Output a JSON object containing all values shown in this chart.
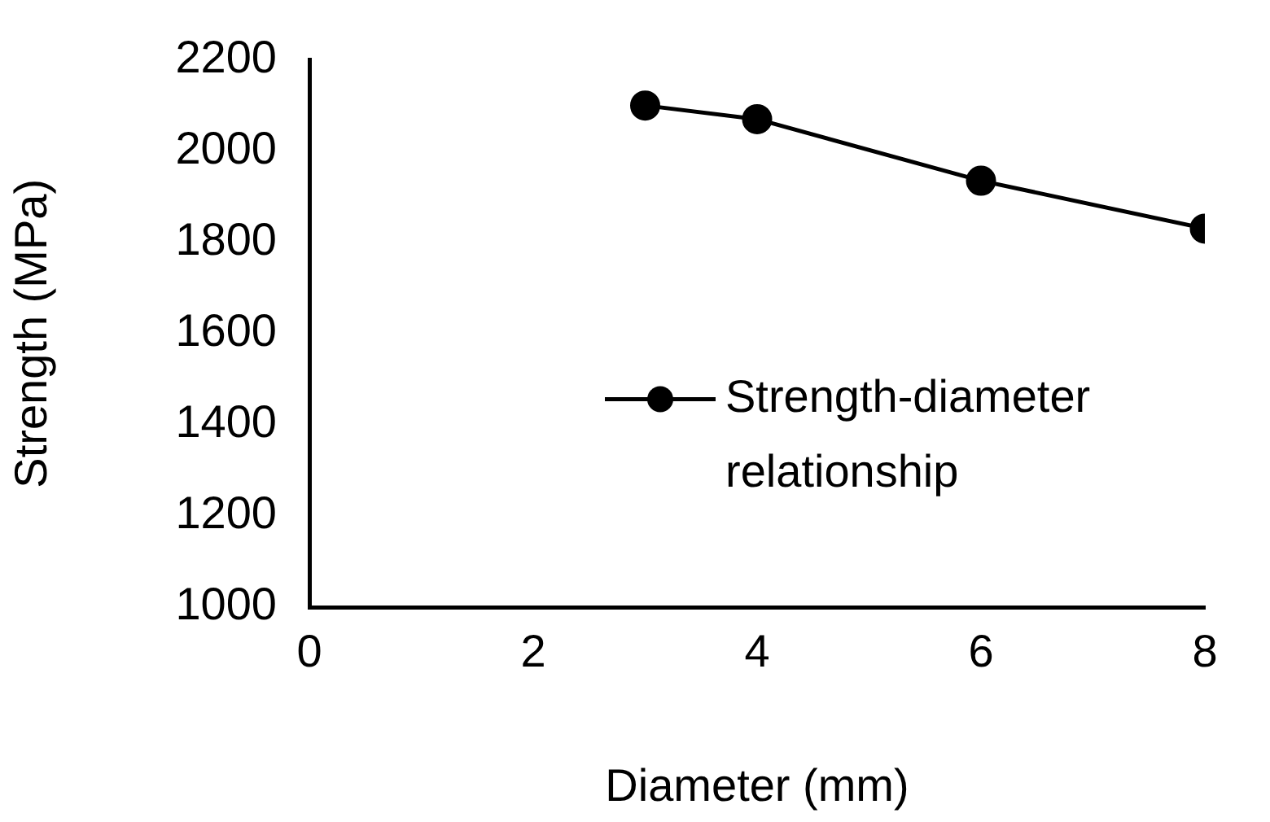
{
  "chart_data": {
    "type": "line",
    "xlabel": "Diameter (mm)",
    "ylabel": "Strength (MPa)",
    "x": [
      3,
      4,
      6,
      8
    ],
    "series": [
      {
        "name": "Strength-diameter relationship",
        "color": "#000000",
        "values": [
          2100,
          2070,
          1935,
          1830
        ]
      }
    ],
    "xlim": [
      0,
      8
    ],
    "xticks": [
      0,
      2,
      4,
      6,
      8
    ],
    "ylim": [
      1000,
      2200
    ],
    "yticks": [
      1000,
      1200,
      1400,
      1600,
      1800,
      2000,
      2200
    ],
    "grid": false,
    "legend": "right",
    "marker": "circle",
    "line_style": "solid"
  }
}
